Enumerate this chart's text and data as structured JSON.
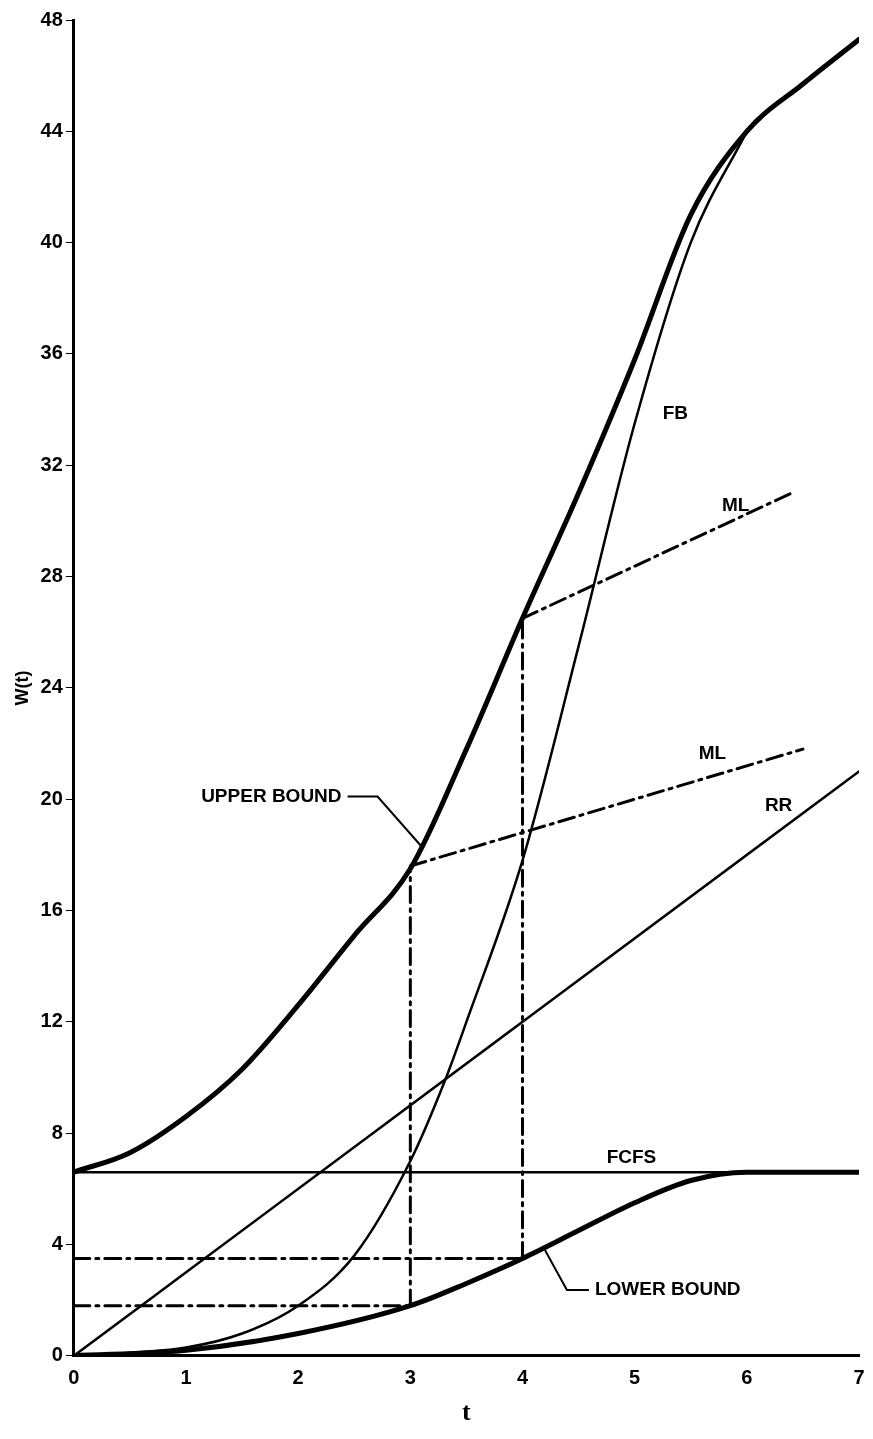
{
  "chart_data": {
    "type": "line",
    "xlabel": "t",
    "ylabel": "W(t)",
    "xlim": [
      0,
      7
    ],
    "ylim": [
      0,
      48
    ],
    "xticks": [
      0,
      1,
      2,
      3,
      4,
      5,
      6,
      7
    ],
    "yticks": [
      0,
      4,
      8,
      12,
      16,
      20,
      24,
      28,
      32,
      36,
      40,
      44,
      48
    ],
    "grid": false,
    "legend": false,
    "series": [
      {
        "color": "#000000",
        "x": [
          0,
          0.5,
          1,
          1.5,
          2,
          2.5,
          3,
          3.5,
          4,
          4.5,
          5,
          5.5,
          6,
          6.5,
          7
        ],
        "values": [
          6.6,
          7.3,
          8.6,
          10.3,
          12.6,
          15.1,
          17.5,
          21.8,
          26.5,
          31,
          35.8,
          41,
          44,
          45.7,
          47.3
        ]
      },
      {
        "color": "#000000",
        "x": [
          0,
          1,
          1.5,
          2,
          2.5,
          3,
          3.3,
          3.5,
          4,
          4.5,
          5,
          5.5,
          6
        ],
        "values": [
          0,
          0.3,
          0.8,
          1.8,
          3.6,
          7,
          9.8,
          12,
          17.8,
          25.5,
          33.5,
          40,
          44
        ]
      },
      {
        "color": "#000000",
        "x": [
          0,
          7
        ],
        "values": [
          0,
          21
        ]
      },
      {
        "color": "#000000",
        "x": [
          0,
          7
        ],
        "values": [
          6.6,
          6.6
        ]
      },
      {
        "color": "#000000",
        "x": [
          0,
          1,
          2,
          3,
          3.5,
          4,
          4.5,
          5,
          5.5,
          6,
          7
        ],
        "values": [
          0,
          0.2,
          0.8,
          1.8,
          2.6,
          3.5,
          4.5,
          5.5,
          6.3,
          6.6,
          6.6
        ]
      },
      {
        "color": "#000000",
        "line_style": "dashed",
        "x": [
          3,
          6.5
        ],
        "values": [
          17.6,
          21.8
        ]
      },
      {
        "color": "#000000",
        "line_style": "dashed",
        "x": [
          4,
          6.4
        ],
        "values": [
          26.5,
          31
        ]
      },
      {
        "color": "#000000",
        "line_style": "dashed",
        "x": [
          3,
          3
        ],
        "values": [
          1.8,
          17.5
        ]
      },
      {
        "color": "#000000",
        "line_style": "dashed",
        "x": [
          4,
          4
        ],
        "values": [
          3.5,
          26.5
        ]
      },
      {
        "color": "#000000",
        "line_style": "dashed",
        "x": [
          0,
          3
        ],
        "values": [
          1.8,
          1.8
        ]
      },
      {
        "color": "#000000",
        "line_style": "dashed",
        "x": [
          0,
          4
        ],
        "values": [
          3.5,
          3.5
        ]
      }
    ],
    "annotations": [
      {
        "text": "FB",
        "x": 5,
        "y": 33.5
      },
      {
        "text": "ML",
        "x": 5.6,
        "y": 29.6
      },
      {
        "text": "ML",
        "x": 5.75,
        "y": 20.9
      },
      {
        "text": "RR",
        "x": 6.25,
        "y": 18.75
      },
      {
        "text": "FCFS",
        "x": 5,
        "y": 6.6
      },
      {
        "text": "UPPER BOUND",
        "x": 3.1,
        "y": 18.3
      },
      {
        "text": "LOWER BOUND",
        "x": 4.2,
        "y": 3.8
      }
    ]
  }
}
